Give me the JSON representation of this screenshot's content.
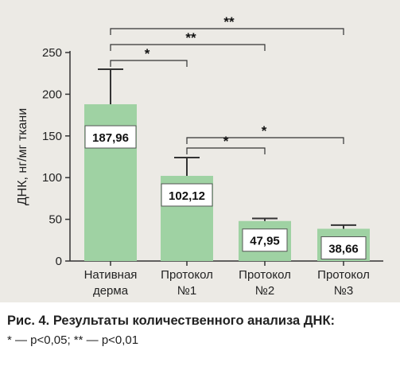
{
  "chart_data": {
    "type": "bar",
    "ylabel": "ДНК, нг/мг ткани",
    "ylim": [
      0,
      250
    ],
    "yticks": [
      "0",
      "50",
      "100",
      "150",
      "200",
      "250"
    ],
    "categories": [
      [
        "Нативная",
        "дерма"
      ],
      [
        "Протокол",
        "№1"
      ],
      [
        "Протокол",
        "№2"
      ],
      [
        "Протокол",
        "№3"
      ]
    ],
    "values": [
      187.96,
      102.12,
      47.95,
      38.66
    ],
    "value_labels": [
      "187,96",
      "102,12",
      "47,95",
      "38,66"
    ],
    "error_upper": [
      230,
      124,
      51,
      43
    ],
    "bar_color": "#9fd2a3",
    "grid": false,
    "significance": [
      {
        "from": 0,
        "to": 1,
        "label": "*",
        "level": 1
      },
      {
        "from": 0,
        "to": 2,
        "label": "**",
        "level": 2
      },
      {
        "from": 0,
        "to": 3,
        "label": "**",
        "level": 3
      },
      {
        "from": 1,
        "to": 2,
        "label": "*",
        "level": 1
      },
      {
        "from": 1,
        "to": 3,
        "label": "*",
        "level": 2
      }
    ]
  },
  "caption": {
    "title": "Рис. 4. Результаты количественного анализа ДНК:",
    "note": "* — p<0,05; ** — p<0,01"
  }
}
